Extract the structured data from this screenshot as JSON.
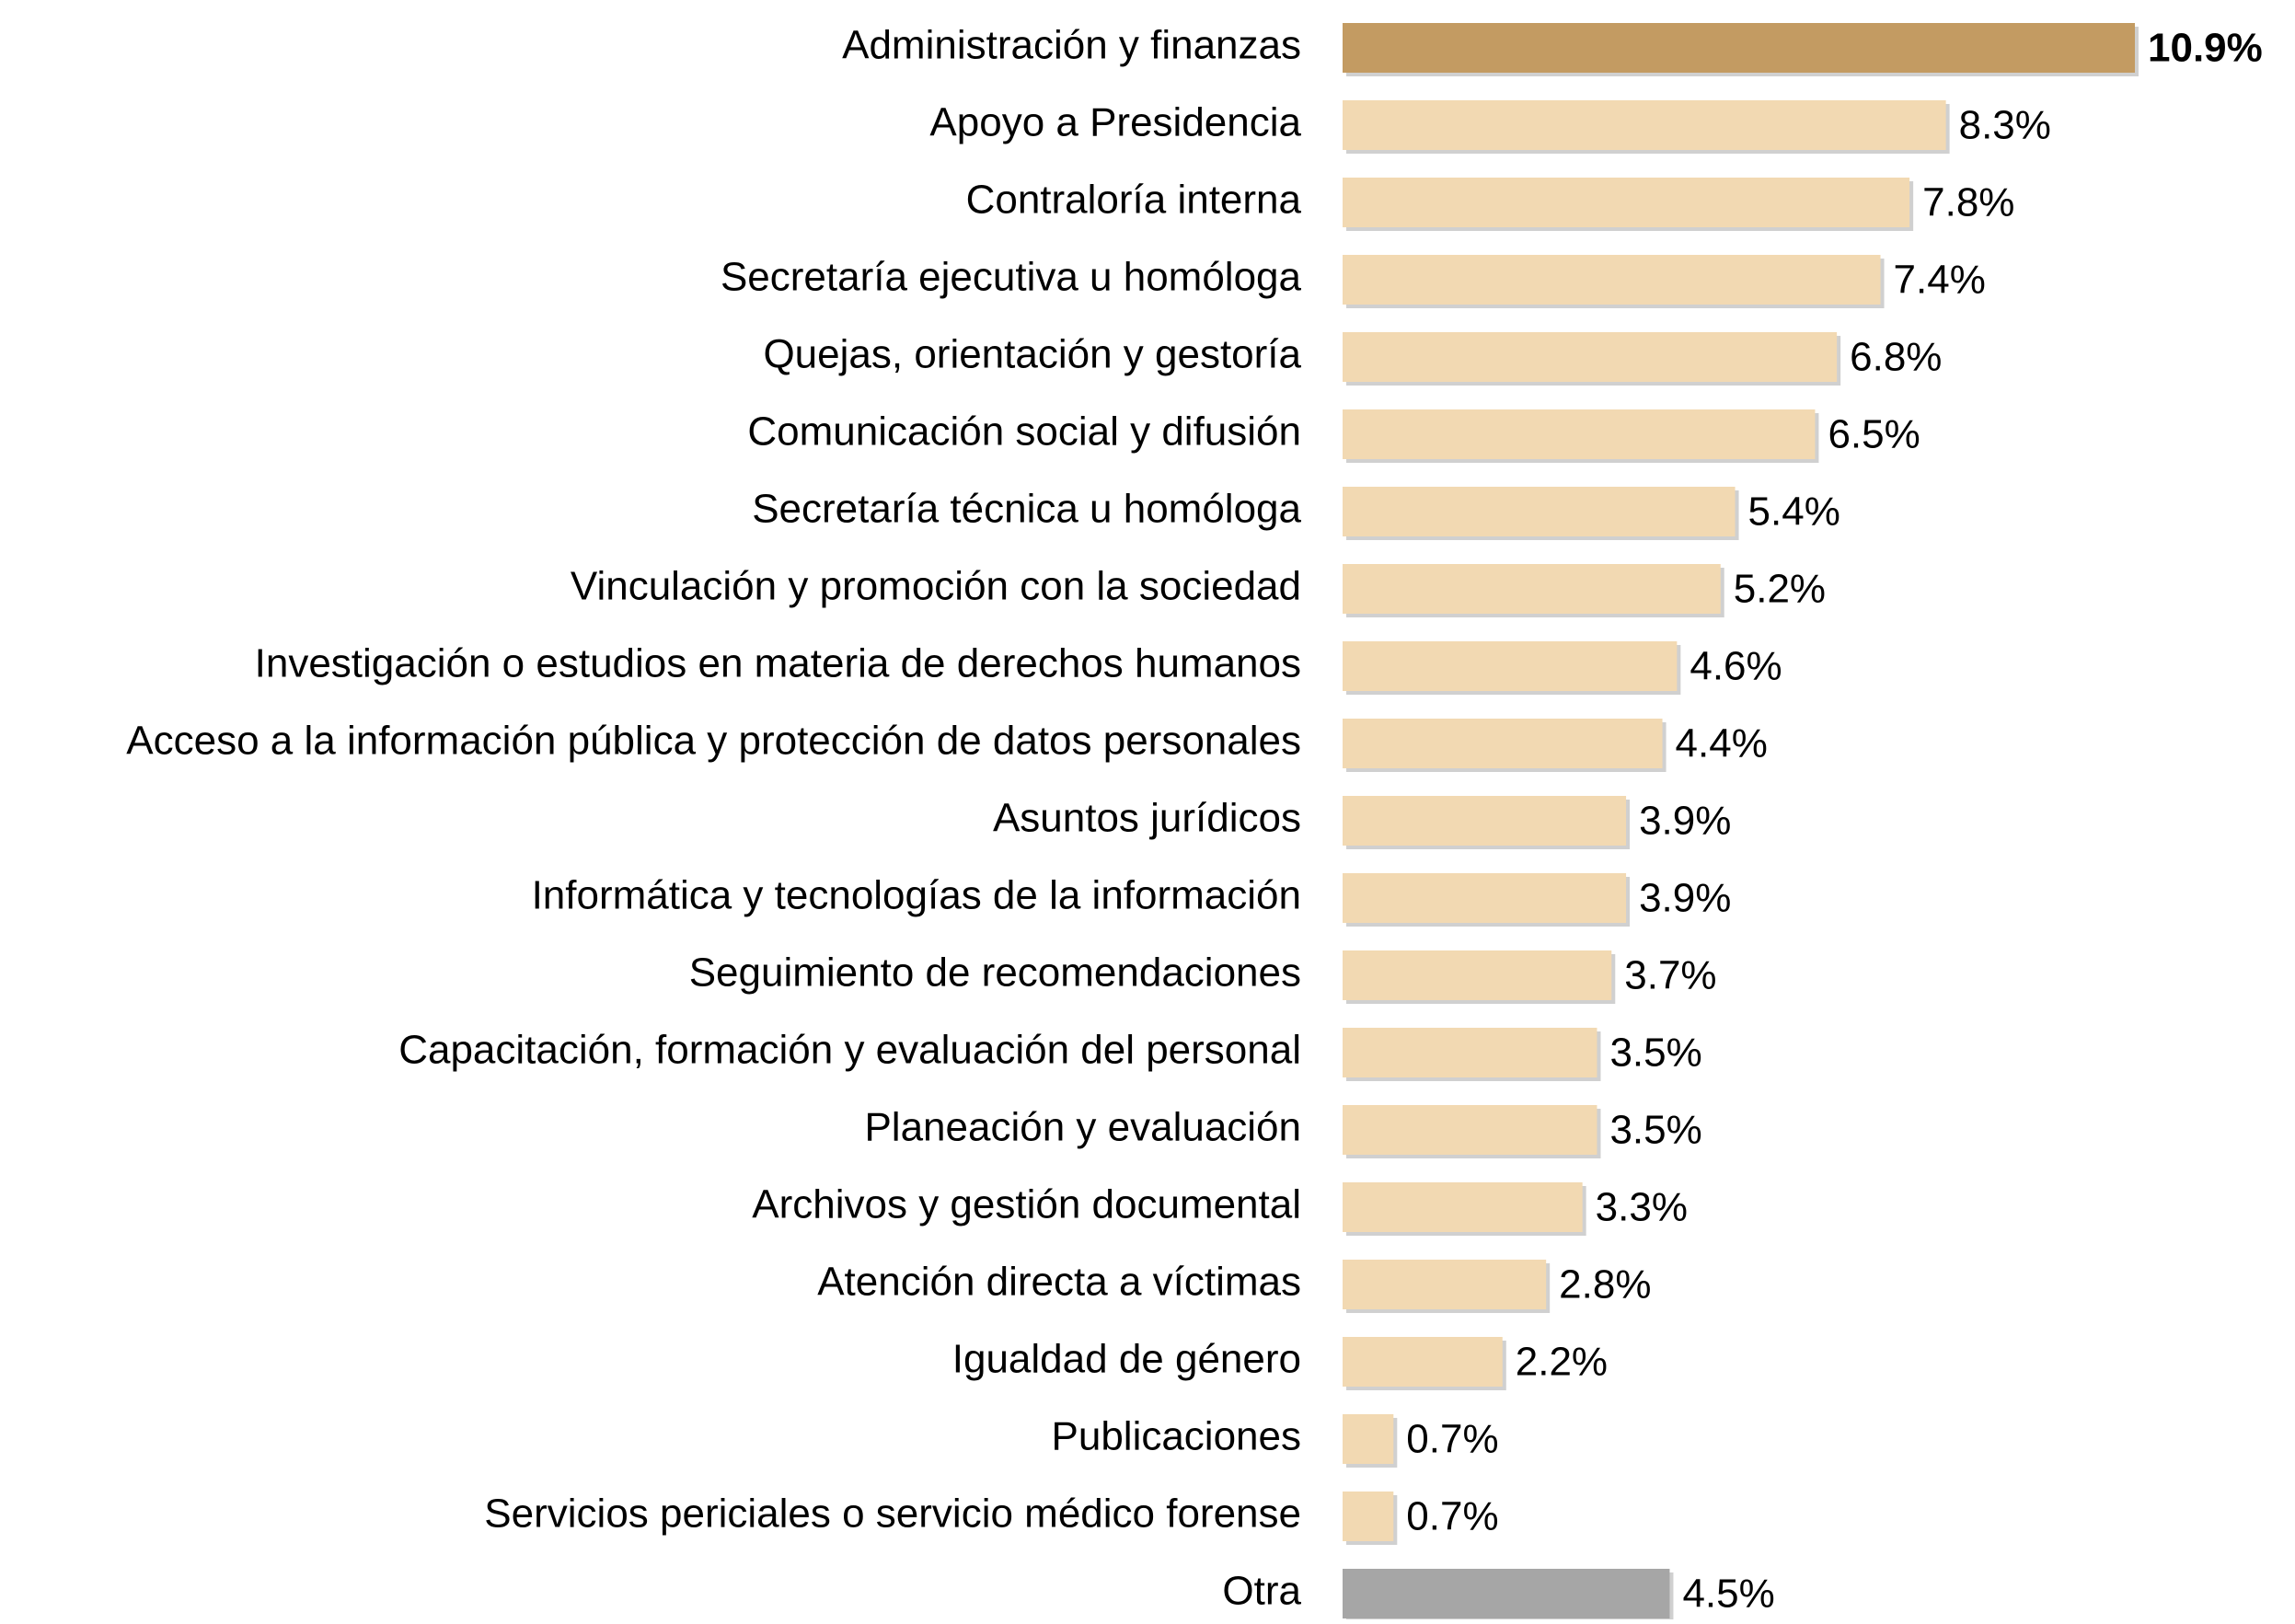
{
  "chart_data": {
    "type": "bar",
    "orientation": "horizontal",
    "categories": [
      "Administración y finanzas",
      "Apoyo a Presidencia",
      "Contraloría interna",
      "Secretaría ejecutiva u homóloga",
      "Quejas, orientación y gestoría",
      "Comunicación social y difusión",
      "Secretaría técnica u homóloga",
      "Vinculación y promoción con la sociedad",
      "Investigación o estudios en materia de derechos humanos",
      "Acceso a la información pública y protección de datos personales",
      "Asuntos jurídicos",
      "Informática y tecnologías de la información",
      "Seguimiento de recomendaciones",
      "Capacitación, formación y evaluación del personal",
      "Planeación y evaluación",
      "Archivos y gestión documental",
      "Atención directa a víctimas",
      "Igualdad de género",
      "Publicaciones",
      "Servicios periciales o servicio médico forense",
      "Otra"
    ],
    "values": [
      10.9,
      8.3,
      7.8,
      7.4,
      6.8,
      6.5,
      5.4,
      5.2,
      4.6,
      4.4,
      3.9,
      3.9,
      3.7,
      3.5,
      3.5,
      3.3,
      2.8,
      2.2,
      0.7,
      0.7,
      4.5
    ],
    "value_labels": [
      "10.9%",
      "8.3%",
      "7.8%",
      "7.4%",
      "6.8%",
      "6.5%",
      "5.4%",
      "5.2%",
      "4.6%",
      "4.4%",
      "3.9%",
      "3.9%",
      "3.7%",
      "3.5%",
      "3.5%",
      "3.3%",
      "2.8%",
      "2.2%",
      "0.7%",
      "0.7%",
      "4.5%"
    ],
    "colors": [
      "#c39b62",
      "#f2d9b2",
      "#f2d9b2",
      "#f2d9b2",
      "#f2d9b2",
      "#f2d9b2",
      "#f2d9b2",
      "#f2d9b2",
      "#f2d9b2",
      "#f2d9b2",
      "#f2d9b2",
      "#f2d9b2",
      "#f2d9b2",
      "#f2d9b2",
      "#f2d9b2",
      "#f2d9b2",
      "#f2d9b2",
      "#f2d9b2",
      "#f2d9b2",
      "#f2d9b2",
      "#a6a6a6"
    ]
  }
}
